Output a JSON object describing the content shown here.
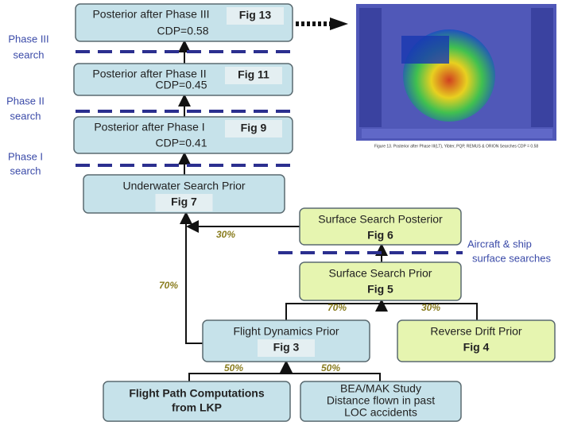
{
  "nodes": [
    {
      "title": "Posterior after Phase III",
      "fig": "Fig 13",
      "sub": "CDP=0.58"
    },
    {
      "title": "Posterior after Phase II",
      "fig": "Fig 11",
      "sub": "CDP=0.45"
    },
    {
      "title": "Posterior after Phase I",
      "fig": "Fig 9",
      "sub": "CDP=0.41"
    },
    {
      "title": "Underwater Search Prior",
      "fig": "Fig 7"
    },
    {
      "title": "Surface Search Posterior",
      "fig": "Fig 6"
    },
    {
      "title": "Surface Search Prior",
      "fig": "Fig 5"
    },
    {
      "title": "Flight Dynamics Prior",
      "fig": "Fig 3"
    },
    {
      "title": "Reverse Drift Prior",
      "fig": "Fig 4"
    },
    {
      "lines": [
        "Flight Path Computations",
        "from LKP"
      ]
    },
    {
      "lines": [
        "BEA/MAK Study",
        "Distance flown in past",
        "LOC accidents"
      ]
    }
  ],
  "phases": [
    {
      "lines": [
        "Phase III",
        "search"
      ]
    },
    {
      "lines": [
        "Phase II",
        "search"
      ]
    },
    {
      "lines": [
        "Phase I",
        "search"
      ]
    }
  ],
  "surface_searches": {
    "lines": [
      "Aircraft & ship",
      "surface searches"
    ]
  },
  "edge_labels": [
    "30%",
    "70%",
    "70%",
    "30%",
    "50%",
    "50%"
  ],
  "inset": {
    "caption": "Figure 13. Posterior after Phase III(LT), Yibter, PQP, REMUS & ORION Searches CDP = 0.58"
  }
}
